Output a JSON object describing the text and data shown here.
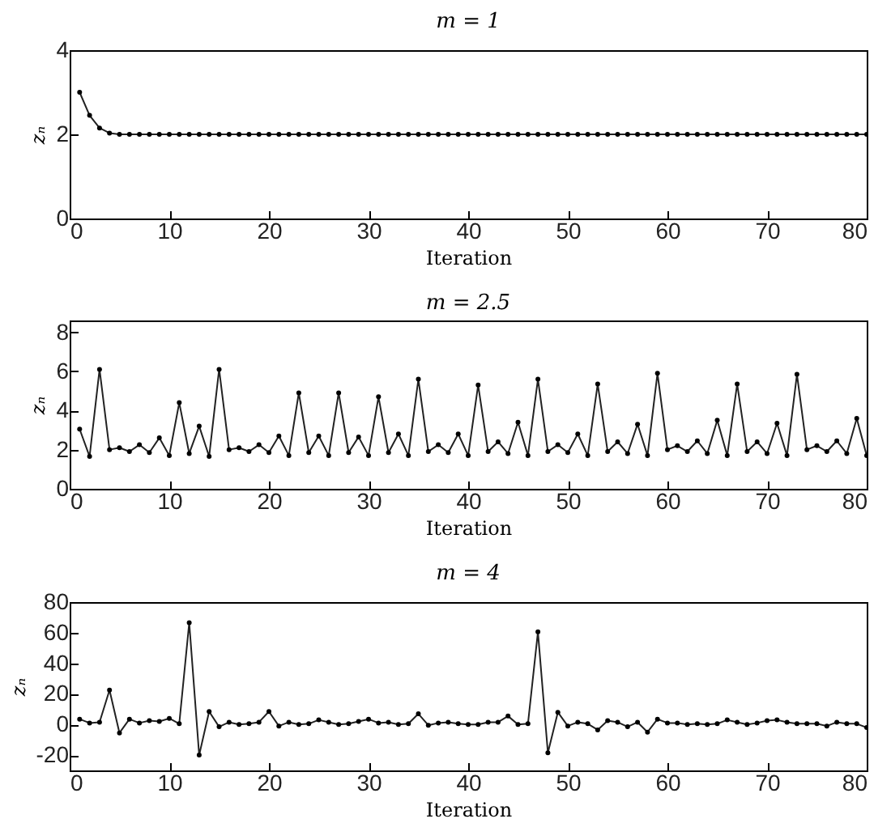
{
  "chart_data": [
    {
      "type": "line",
      "title": "m = 1",
      "xlabel": "Iteration",
      "ylabel": "zₙ",
      "marker": "circle",
      "xlim": [
        0,
        80
      ],
      "ylim": [
        0,
        4
      ],
      "xticks": [
        0,
        10,
        20,
        30,
        40,
        50,
        60,
        70,
        80
      ],
      "yticks": [
        0,
        2,
        4
      ],
      "x": [
        1,
        2,
        3,
        4,
        5,
        6,
        7,
        8,
        9,
        10,
        11,
        12,
        13,
        14,
        15,
        16,
        17,
        18,
        19,
        20,
        21,
        22,
        23,
        24,
        25,
        26,
        27,
        28,
        29,
        30,
        31,
        32,
        33,
        34,
        35,
        36,
        37,
        38,
        39,
        40,
        41,
        42,
        43,
        44,
        45,
        46,
        47,
        48,
        49,
        50,
        51,
        52,
        53,
        54,
        55,
        56,
        57,
        58,
        59,
        60,
        61,
        62,
        63,
        64,
        65,
        66,
        67,
        68,
        69,
        70,
        71,
        72,
        73,
        74,
        75,
        76,
        77,
        78,
        79,
        80
      ],
      "series": [
        {
          "color": "#222222",
          "values": [
            3,
            2.45,
            2.15,
            2.03,
            2,
            2,
            2,
            2,
            2,
            2,
            2,
            2,
            2,
            2,
            2,
            2,
            2,
            2,
            2,
            2,
            2,
            2,
            2,
            2,
            2,
            2,
            2,
            2,
            2,
            2,
            2,
            2,
            2,
            2,
            2,
            2,
            2,
            2,
            2,
            2,
            2,
            2,
            2,
            2,
            2,
            2,
            2,
            2,
            2,
            2,
            2,
            2,
            2,
            2,
            2,
            2,
            2,
            2,
            2,
            2,
            2,
            2,
            2,
            2,
            2,
            2,
            2,
            2,
            2,
            2,
            2,
            2,
            2,
            2,
            2,
            2,
            2,
            2,
            2,
            2
          ]
        }
      ]
    },
    {
      "type": "line",
      "title": "m = 2.5",
      "xlabel": "Iteration",
      "ylabel": "zₙ",
      "marker": "circle",
      "xlim": [
        0,
        80
      ],
      "ylim": [
        0,
        8.6
      ],
      "xticks": [
        0,
        10,
        20,
        30,
        40,
        50,
        60,
        70,
        80
      ],
      "yticks": [
        0,
        2,
        4,
        6,
        8
      ],
      "x": [
        1,
        2,
        3,
        4,
        5,
        6,
        7,
        8,
        9,
        10,
        11,
        12,
        13,
        14,
        15,
        16,
        17,
        18,
        19,
        20,
        21,
        22,
        23,
        24,
        25,
        26,
        27,
        28,
        29,
        30,
        31,
        32,
        33,
        34,
        35,
        36,
        37,
        38,
        39,
        40,
        41,
        42,
        43,
        44,
        45,
        46,
        47,
        48,
        49,
        50,
        51,
        52,
        53,
        54,
        55,
        56,
        57,
        58,
        59,
        60,
        61,
        62,
        63,
        64,
        65,
        66,
        67,
        68,
        69,
        70,
        71,
        72,
        73,
        74,
        75,
        76,
        77,
        78,
        79,
        80
      ],
      "series": [
        {
          "color": "#222222",
          "values": [
            3.05,
            1.65,
            6.1,
            2.0,
            2.1,
            1.9,
            2.25,
            1.85,
            2.6,
            1.7,
            4.4,
            1.8,
            3.2,
            1.65,
            6.1,
            2.0,
            2.1,
            1.9,
            2.25,
            1.85,
            2.7,
            1.7,
            4.9,
            1.85,
            2.7,
            1.7,
            4.9,
            1.85,
            2.65,
            1.7,
            4.7,
            1.85,
            2.8,
            1.7,
            5.6,
            1.9,
            2.25,
            1.85,
            2.8,
            1.7,
            5.3,
            1.9,
            2.4,
            1.8,
            3.4,
            1.7,
            5.6,
            1.9,
            2.25,
            1.85,
            2.8,
            1.7,
            5.35,
            1.9,
            2.4,
            1.8,
            3.3,
            1.7,
            5.9,
            2.0,
            2.2,
            1.9,
            2.45,
            1.8,
            3.5,
            1.7,
            5.35,
            1.9,
            2.4,
            1.8,
            3.35,
            1.7,
            5.85,
            2.0,
            2.2,
            1.9,
            2.45,
            1.8,
            3.6,
            1.7
          ]
        }
      ]
    },
    {
      "type": "line",
      "title": "m = 4",
      "xlabel": "Iteration",
      "ylabel": "zₙ",
      "marker": "circle",
      "xlim": [
        0,
        80
      ],
      "ylim": [
        -30,
        80
      ],
      "xticks": [
        0,
        10,
        20,
        30,
        40,
        50,
        60,
        70,
        80
      ],
      "yticks": [
        -20,
        0,
        20,
        40,
        60,
        80
      ],
      "x": [
        1,
        2,
        3,
        4,
        5,
        6,
        7,
        8,
        9,
        10,
        11,
        12,
        13,
        14,
        15,
        16,
        17,
        18,
        19,
        20,
        21,
        22,
        23,
        24,
        25,
        26,
        27,
        28,
        29,
        30,
        31,
        32,
        33,
        34,
        35,
        36,
        37,
        38,
        39,
        40,
        41,
        42,
        43,
        44,
        45,
        46,
        47,
        48,
        49,
        50,
        51,
        52,
        53,
        54,
        55,
        56,
        57,
        58,
        59,
        60,
        61,
        62,
        63,
        64,
        65,
        66,
        67,
        68,
        69,
        70,
        71,
        72,
        73,
        74,
        75,
        76,
        77,
        78,
        79,
        80
      ],
      "series": [
        {
          "color": "#222222",
          "values": [
            3.5,
            1,
            1.5,
            22.5,
            -5.5,
            3.5,
            1,
            2.5,
            2,
            4,
            0.5,
            66.5,
            -20,
            8.5,
            -1.5,
            1.5,
            0,
            0.5,
            1.5,
            8.5,
            -1,
            1.5,
            0,
            0.5,
            3,
            1.5,
            0,
            0.5,
            2,
            3.5,
            1,
            1.5,
            0,
            0.5,
            7,
            -0.5,
            1,
            1.5,
            0.5,
            0,
            0,
            1.5,
            1.5,
            5.5,
            0,
            0.5,
            60.5,
            -18.5,
            8,
            -1,
            1.5,
            0.5,
            -3.5,
            2.5,
            1.5,
            -1.5,
            1.5,
            -5,
            3.5,
            1,
            1,
            0,
            0.5,
            0,
            0.5,
            3,
            1.5,
            0,
            1,
            2.5,
            3,
            1.5,
            0.5,
            0.5,
            0.5,
            -1,
            1.5,
            0.5,
            0.5,
            -2
          ]
        }
      ]
    }
  ]
}
